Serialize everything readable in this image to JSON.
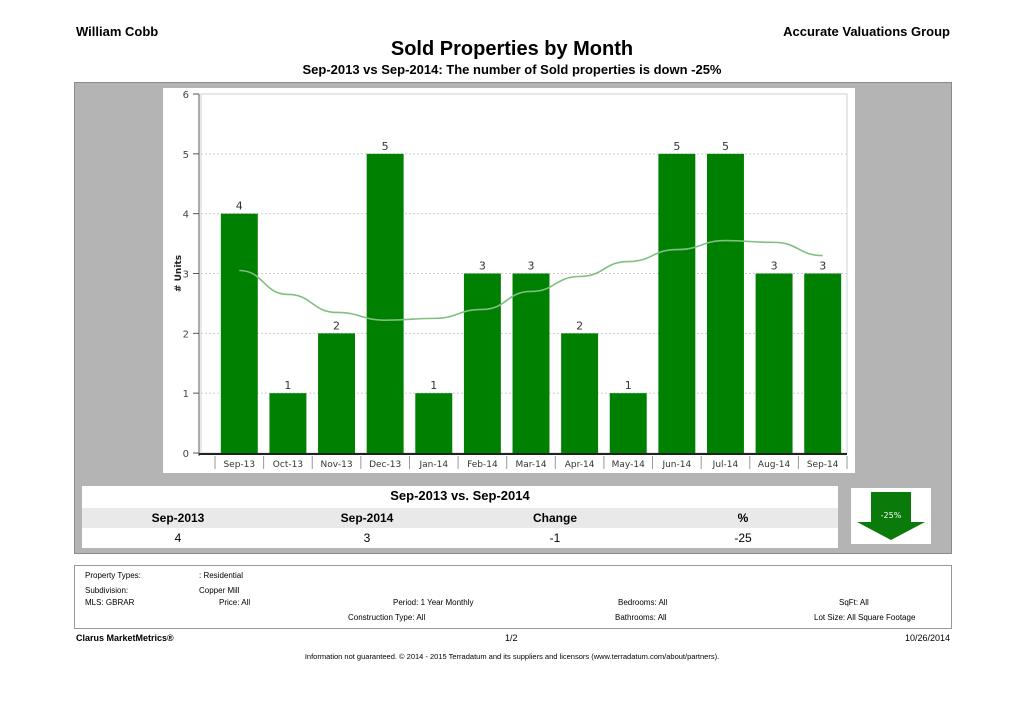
{
  "header": {
    "agent": "William  Cobb",
    "company": "Accurate Valuations Group",
    "title": "Sold Properties by Month",
    "subtitle": "Sep-2013 vs Sep-2014: The number of Sold   properties is down -25%"
  },
  "chart_data": {
    "type": "bar",
    "categories": [
      "Sep-13",
      "Oct-13",
      "Nov-13",
      "Dec-13",
      "Jan-14",
      "Feb-14",
      "Mar-14",
      "Apr-14",
      "May-14",
      "Jun-14",
      "Jul-14",
      "Aug-14",
      "Sep-14"
    ],
    "values": [
      4,
      1,
      2,
      5,
      1,
      3,
      3,
      2,
      1,
      5,
      5,
      3,
      3
    ],
    "trend": [
      3.05,
      2.65,
      2.35,
      2.22,
      2.25,
      2.4,
      2.7,
      2.95,
      3.2,
      3.4,
      3.55,
      3.52,
      3.3
    ],
    "ylabel": "# Units",
    "ylim": [
      0,
      6
    ],
    "yticks": [
      "0",
      "1",
      "2",
      "3",
      "4",
      "5",
      "6"
    ],
    "bar_color": "#008000",
    "trend_color": "#7fbf7f",
    "grid": true
  },
  "comparison": {
    "title": "Sep-2013 vs. Sep-2014",
    "headers": [
      "Sep-2013",
      "Sep-2014",
      "Change",
      "%"
    ],
    "values": [
      "4",
      "3",
      "-1",
      "-25"
    ],
    "badge": "-25%",
    "badge_color": "#008000"
  },
  "info": {
    "property_types_label": "Property Types:",
    "property_types_value": ": Residential",
    "subdivision_label": "Subdivision:",
    "subdivision_value": "Copper Mill",
    "mls": "MLS:   GBRAR",
    "price": "Price: All",
    "period": "Period: 1 Year Monthly",
    "bedrooms": "Bedrooms: All",
    "sqft": "SqFt:  All",
    "construction": "Construction Type: All",
    "bathrooms": "Bathrooms: All",
    "lot_size": "Lot Size:  All Square Footage"
  },
  "footer": {
    "brand": "Clarus MarketMetrics®",
    "page": "1/2",
    "date": "10/26/2014",
    "disclaimer": "Information not guaranteed. © 2014 - 2015 Terradatum and its suppliers and licensors (www.terradatum.com/about/partners)."
  }
}
